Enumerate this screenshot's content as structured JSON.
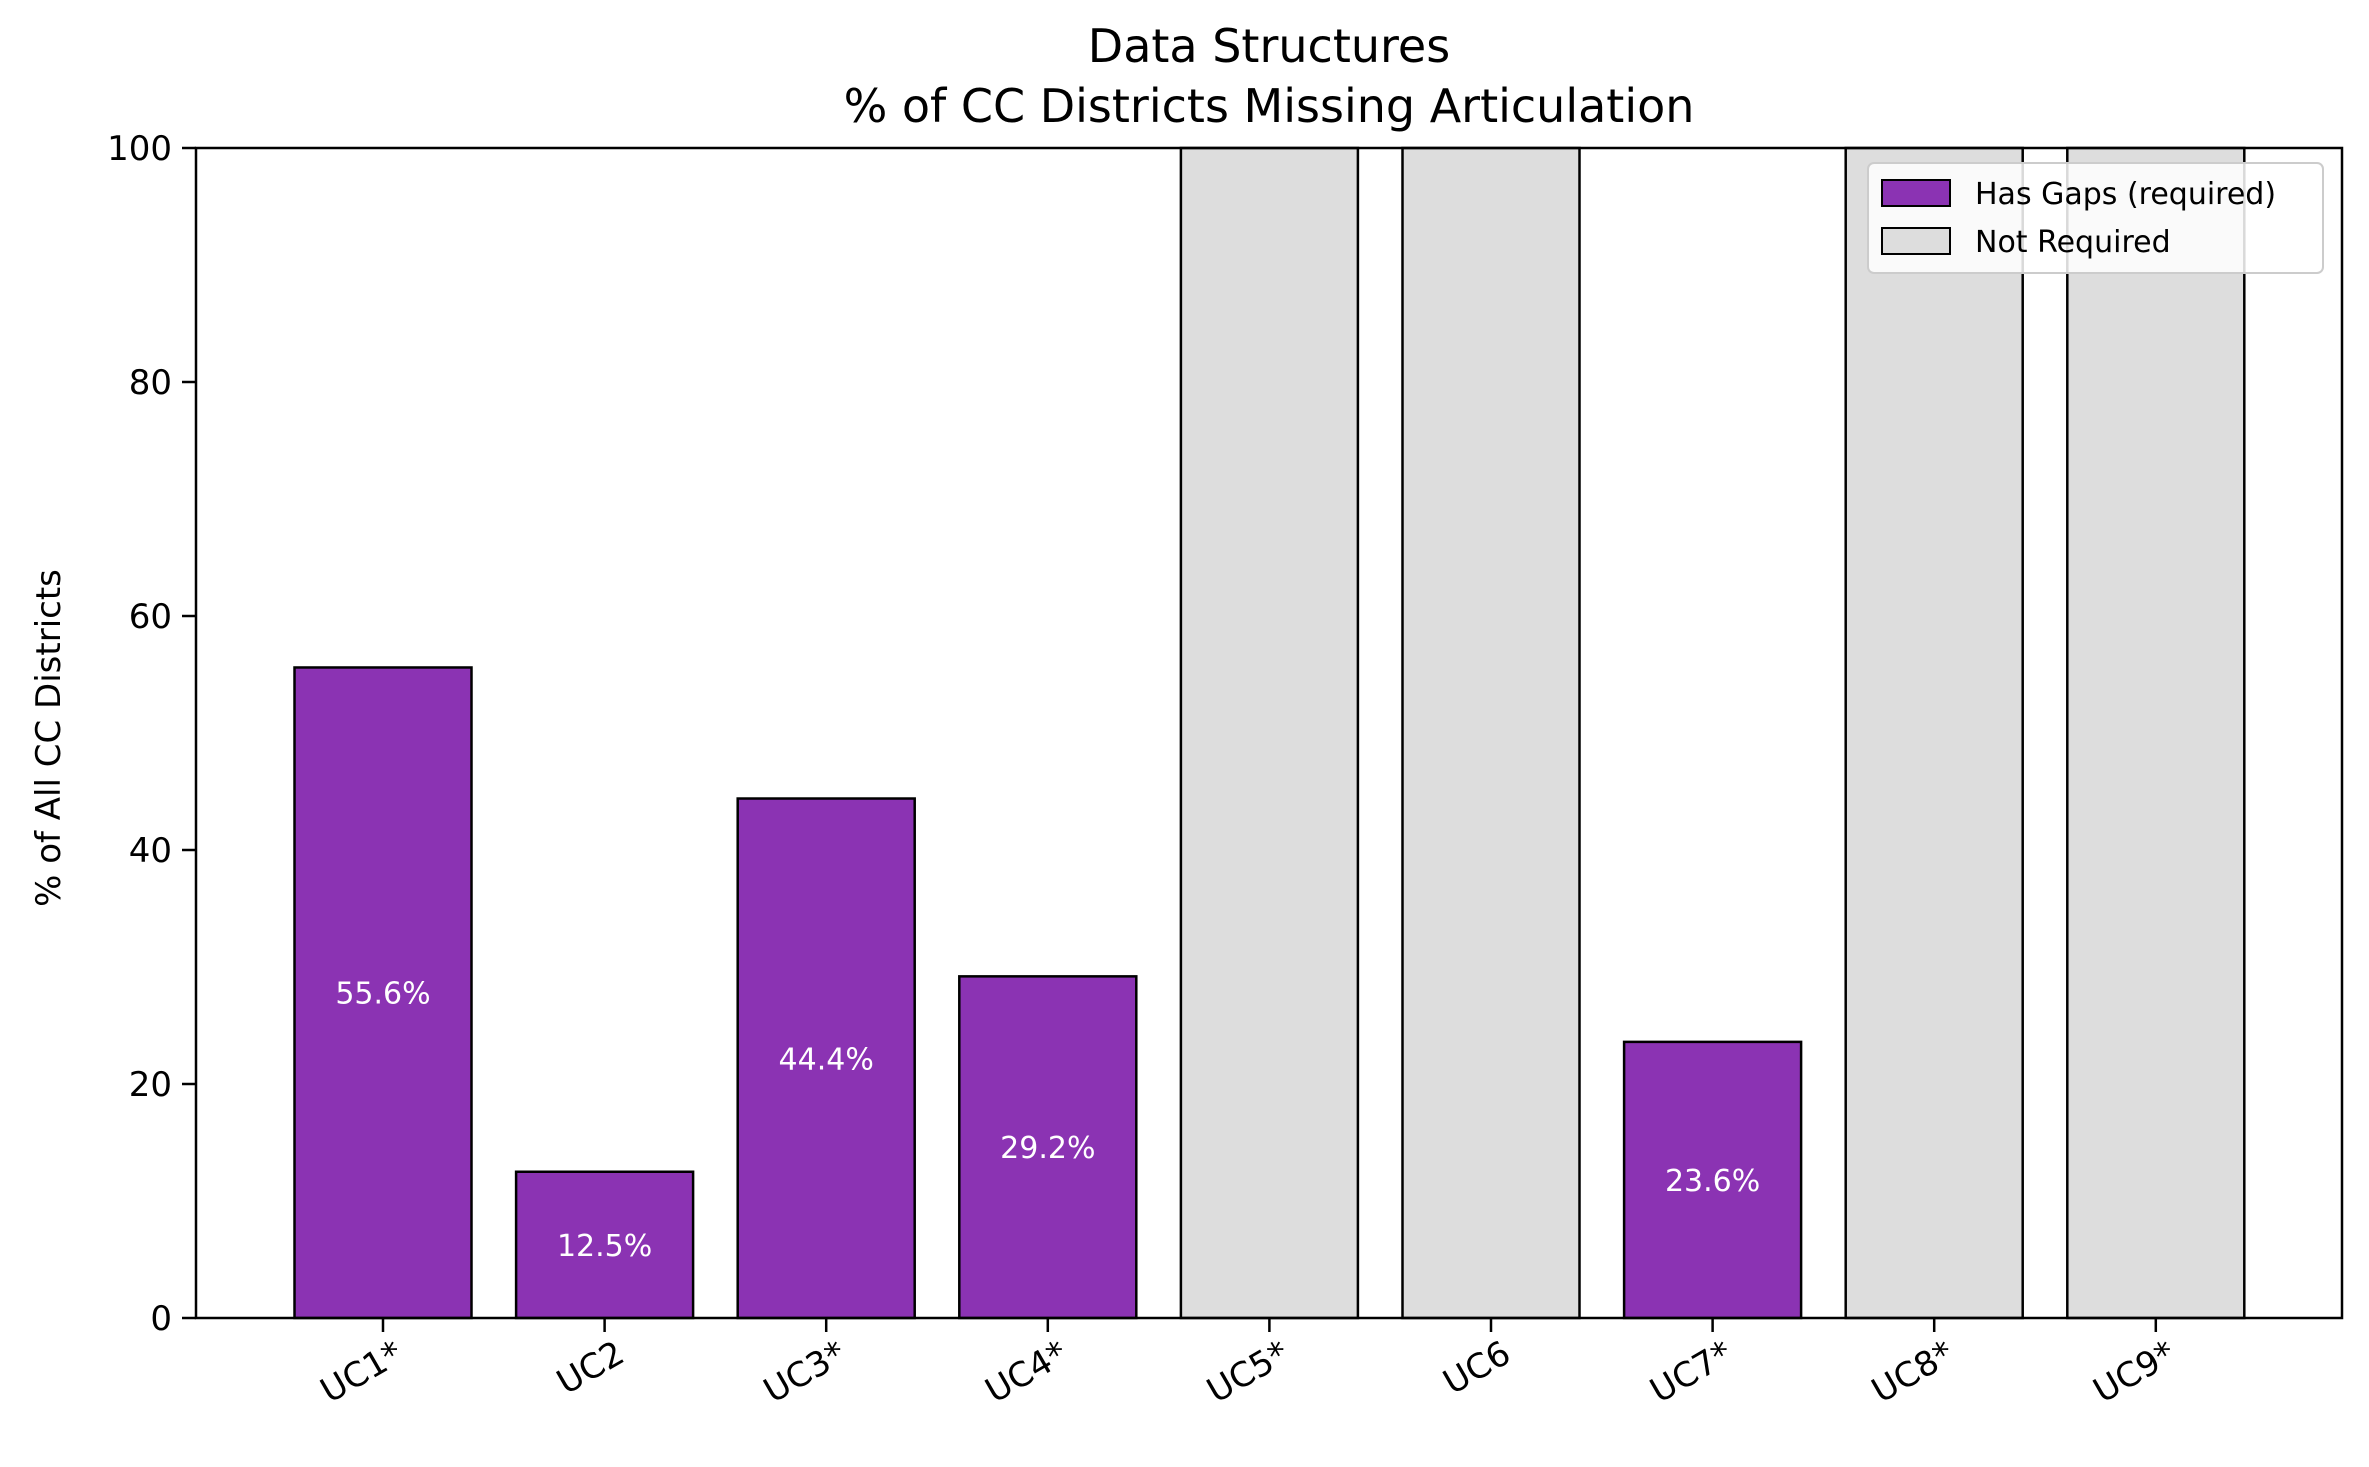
{
  "chart_data": {
    "type": "bar",
    "title": "Data Structures",
    "subtitle": "% of CC Districts Missing Articulation",
    "xlabel": "",
    "ylabel": "% of All CC Districts",
    "ylim": [
      0,
      100
    ],
    "yticks": [
      0,
      20,
      40,
      60,
      80,
      100
    ],
    "grid": false,
    "legend_position": "top-right",
    "categories": [
      "UC1*",
      "UC2",
      "UC3*",
      "UC4*",
      "UC5*",
      "UC6",
      "UC7*",
      "UC8*",
      "UC9*"
    ],
    "series": [
      {
        "name": "Has Gaps (required)",
        "color": "#8b33b3",
        "values": [
          55.6,
          12.5,
          44.4,
          29.2,
          null,
          null,
          23.6,
          null,
          null
        ],
        "labels": [
          "55.6%",
          "12.5%",
          "44.4%",
          "29.2%",
          "",
          "",
          "23.6%",
          "",
          ""
        ]
      },
      {
        "name": "Not Required",
        "color": "#dddddd",
        "values": [
          null,
          null,
          null,
          null,
          100,
          100,
          null,
          100,
          100
        ],
        "labels": [
          "",
          "",
          "",
          "",
          "",
          "",
          "",
          "",
          ""
        ]
      }
    ]
  }
}
